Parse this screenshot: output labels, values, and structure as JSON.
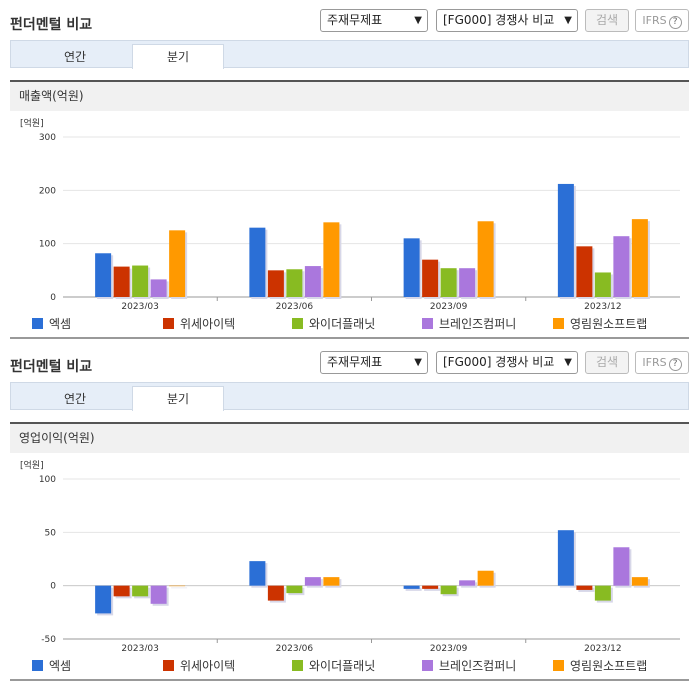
{
  "panels": [
    {
      "title": "펀더멘털 비교",
      "select_statement": "주재무제표",
      "select_compare": "[FG000] 경쟁사 비교",
      "search_label": "검색",
      "ifrs_label": "IFRS",
      "tabs": [
        "연간",
        "분기"
      ],
      "active_tab": 1,
      "section_title": "매출액(억원)"
    },
    {
      "title": "펀더멘털 비교",
      "select_statement": "주재무제표",
      "select_compare": "[FG000] 경쟁사 비교",
      "search_label": "검색",
      "ifrs_label": "IFRS",
      "tabs": [
        "연간",
        "분기"
      ],
      "active_tab": 1,
      "section_title": "영업이익(억원)"
    }
  ],
  "legend": [
    {
      "name": "엑셈",
      "color": "#2b6fd6"
    },
    {
      "name": "위세아이텍",
      "color": "#cc3300"
    },
    {
      "name": "와이더플래닛",
      "color": "#88bb22"
    },
    {
      "name": "브레인즈컴퍼니",
      "color": "#aa77dd"
    },
    {
      "name": "영림원소프트랩",
      "color": "#ff9900"
    }
  ],
  "chart_data": [
    {
      "type": "bar",
      "unit_label": "[억원]",
      "categories": [
        "2023/03",
        "2023/06",
        "2023/09",
        "2023/12"
      ],
      "ylim": [
        0,
        300
      ],
      "yticks": [
        0,
        100,
        200,
        300
      ],
      "series": [
        {
          "name": "엑셈",
          "values": [
            82,
            130,
            110,
            212
          ]
        },
        {
          "name": "위세아이텍",
          "values": [
            57,
            50,
            70,
            95
          ]
        },
        {
          "name": "와이더플래닛",
          "values": [
            59,
            52,
            54,
            46
          ]
        },
        {
          "name": "브레인즈컴퍼니",
          "values": [
            33,
            58,
            54,
            114
          ]
        },
        {
          "name": "영림원소프트랩",
          "values": [
            125,
            140,
            142,
            146
          ]
        }
      ]
    },
    {
      "type": "bar",
      "unit_label": "[억원]",
      "categories": [
        "2023/03",
        "2023/06",
        "2023/09",
        "2023/12"
      ],
      "ylim": [
        -50,
        100
      ],
      "yticks": [
        -50,
        0,
        50,
        100
      ],
      "series": [
        {
          "name": "엑셈",
          "values": [
            -26,
            23,
            -3,
            52
          ]
        },
        {
          "name": "위세아이텍",
          "values": [
            -10,
            -14,
            -3,
            -4
          ]
        },
        {
          "name": "와이더플래닛",
          "values": [
            -10,
            -7,
            -8,
            -14
          ]
        },
        {
          "name": "브레인즈컴퍼니",
          "values": [
            -17,
            8,
            5,
            36
          ]
        },
        {
          "name": "영림원소프트랩",
          "values": [
            0,
            8,
            14,
            8
          ]
        }
      ]
    }
  ]
}
